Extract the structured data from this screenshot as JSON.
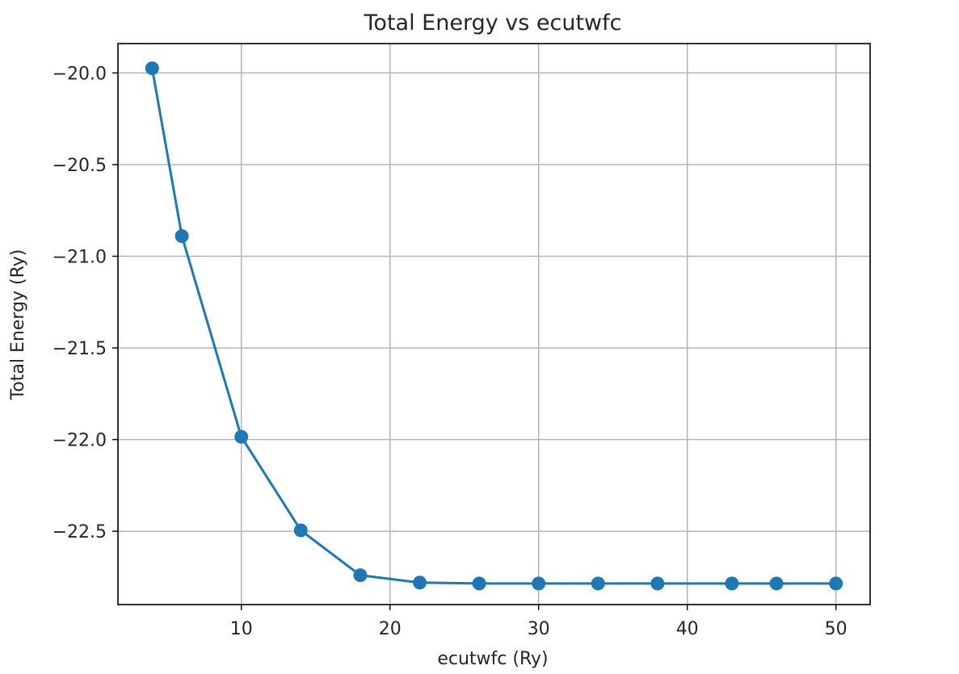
{
  "chart_data": {
    "type": "line",
    "title": "Total Energy vs ecutwfc",
    "xlabel": "ecutwfc (Ry)",
    "ylabel": "Total Energy (Ry)",
    "x": [
      4,
      6,
      10,
      14,
      18,
      22,
      26,
      30,
      34,
      38,
      43,
      46,
      50
    ],
    "series": [
      {
        "values": [
          -19.975,
          -20.89,
          -21.985,
          -22.495,
          -22.74,
          -22.78,
          -22.785,
          -22.785,
          -22.785,
          -22.785,
          -22.785,
          -22.785,
          -22.785
        ]
      }
    ],
    "xlim": [
      1.7,
      52.3
    ],
    "ylim": [
      -22.9,
      -19.84
    ],
    "xticks": [
      10,
      20,
      30,
      40,
      50
    ],
    "xtick_labels": [
      "10",
      "20",
      "30",
      "40",
      "50"
    ],
    "yticks": [
      -20.0,
      -20.5,
      -21.0,
      -21.5,
      -22.0,
      -22.5
    ],
    "ytick_labels": [
      "−20.0",
      "−20.5",
      "−21.0",
      "−21.5",
      "−22.0",
      "−22.5"
    ],
    "grid": true,
    "marker": "circle",
    "color": "#1f77b4"
  }
}
